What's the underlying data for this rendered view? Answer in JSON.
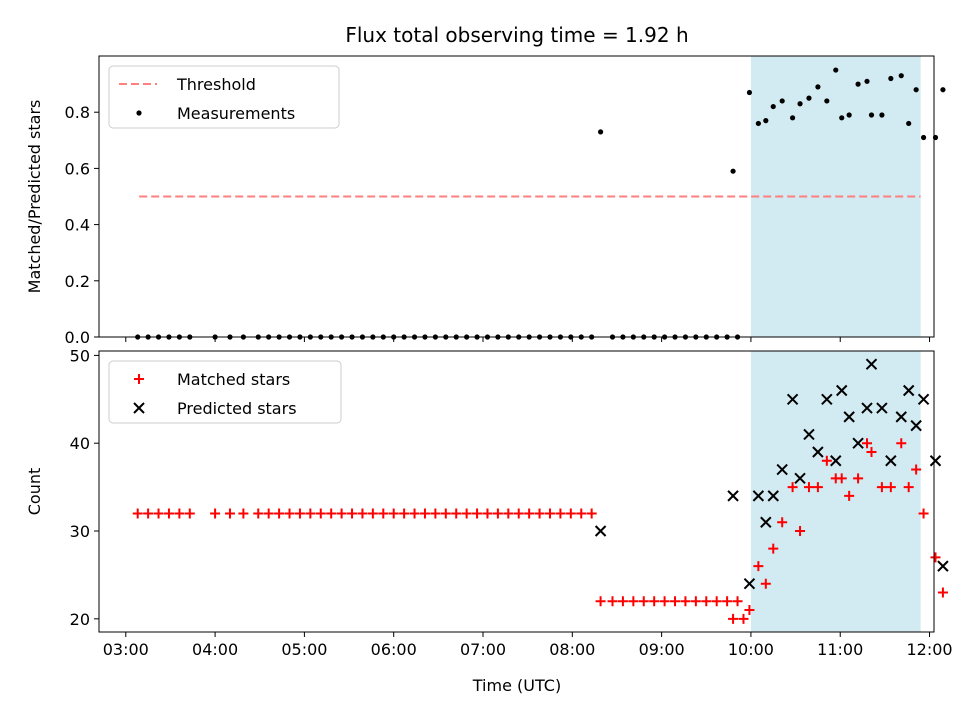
{
  "chart_data": {
    "title": "Flux total observing time = 1.92 h",
    "xlabel": "Time (UTC)",
    "x_ticks": [
      "03:00",
      "04:00",
      "05:00",
      "06:00",
      "07:00",
      "08:00",
      "09:00",
      "10:00",
      "11:00",
      "12:00"
    ],
    "x_range_hours": [
      2.7,
      12.05
    ],
    "highlight_span_hours": [
      10.0,
      11.9
    ],
    "colors": {
      "threshold": "#ff7f7f",
      "measurements": "#000000",
      "matched": "#ff0000",
      "predicted": "#000000",
      "highlight": "#add8e6"
    },
    "panels": [
      {
        "type": "scatter",
        "ylabel": "Matched/Predicted stars",
        "ylim": [
          0,
          1.0
        ],
        "y_ticks": [
          0.0,
          0.2,
          0.4,
          0.6,
          0.8
        ],
        "y_tick_labels": [
          "0.0",
          "0.2",
          "0.4",
          "0.6",
          "0.8"
        ],
        "legend_position": "top-left",
        "threshold": {
          "name": "Threshold",
          "value": 0.5,
          "x_range": [
            3.15,
            11.9
          ]
        },
        "series": [
          {
            "name": "Measurements",
            "marker": "dot",
            "points": [
              [
                "03:08",
                0
              ],
              [
                "03:15",
                0
              ],
              [
                "03:22",
                0
              ],
              [
                "03:29",
                0
              ],
              [
                "03:36",
                0
              ],
              [
                "03:43",
                0
              ],
              [
                "04:00",
                0
              ],
              [
                "04:10",
                0
              ],
              [
                "04:19",
                0
              ],
              [
                "04:29",
                0
              ],
              [
                "04:36",
                0
              ],
              [
                "04:43",
                0
              ],
              [
                "04:50",
                0
              ],
              [
                "04:57",
                0
              ],
              [
                "05:04",
                0
              ],
              [
                "05:11",
                0
              ],
              [
                "05:18",
                0
              ],
              [
                "05:25",
                0
              ],
              [
                "05:32",
                0
              ],
              [
                "05:39",
                0
              ],
              [
                "05:46",
                0
              ],
              [
                "05:53",
                0
              ],
              [
                "06:00",
                0
              ],
              [
                "06:07",
                0
              ],
              [
                "06:14",
                0
              ],
              [
                "06:21",
                0
              ],
              [
                "06:28",
                0
              ],
              [
                "06:35",
                0
              ],
              [
                "06:42",
                0
              ],
              [
                "06:49",
                0
              ],
              [
                "06:56",
                0
              ],
              [
                "07:03",
                0
              ],
              [
                "07:10",
                0
              ],
              [
                "07:17",
                0
              ],
              [
                "07:24",
                0
              ],
              [
                "07:31",
                0
              ],
              [
                "07:38",
                0
              ],
              [
                "07:45",
                0
              ],
              [
                "07:52",
                0
              ],
              [
                "07:59",
                0
              ],
              [
                "08:06",
                0
              ],
              [
                "08:13",
                0
              ],
              [
                "08:19",
                0.73
              ],
              [
                "08:27",
                0
              ],
              [
                "08:34",
                0
              ],
              [
                "08:41",
                0
              ],
              [
                "08:48",
                0
              ],
              [
                "08:55",
                0
              ],
              [
                "09:02",
                0
              ],
              [
                "09:09",
                0
              ],
              [
                "09:16",
                0
              ],
              [
                "09:23",
                0
              ],
              [
                "09:30",
                0
              ],
              [
                "09:37",
                0
              ],
              [
                "09:44",
                0
              ],
              [
                "09:51",
                0
              ],
              [
                "09:48",
                0.59
              ],
              [
                "09:59",
                0.87
              ],
              [
                "10:05",
                0.76
              ],
              [
                "10:10",
                0.77
              ],
              [
                "10:15",
                0.82
              ],
              [
                "10:21",
                0.84
              ],
              [
                "10:28",
                0.78
              ],
              [
                "10:33",
                0.83
              ],
              [
                "10:39",
                0.85
              ],
              [
                "10:45",
                0.89
              ],
              [
                "10:51",
                0.84
              ],
              [
                "10:57",
                0.95
              ],
              [
                "11:01",
                0.78
              ],
              [
                "11:06",
                0.79
              ],
              [
                "11:12",
                0.9
              ],
              [
                "11:18",
                0.91
              ],
              [
                "11:21",
                0.79
              ],
              [
                "11:28",
                0.79
              ],
              [
                "11:34",
                0.92
              ],
              [
                "11:41",
                0.93
              ],
              [
                "11:46",
                0.76
              ],
              [
                "11:51",
                0.88
              ],
              [
                "11:56",
                0.71
              ],
              [
                "12:04",
                0.71
              ],
              [
                "12:09",
                0.88
              ]
            ]
          }
        ]
      },
      {
        "type": "scatter",
        "ylabel": "Count",
        "ylim": [
          18.5,
          50.5
        ],
        "y_ticks": [
          20,
          30,
          40,
          50
        ],
        "y_tick_labels": [
          "20",
          "30",
          "40",
          "50"
        ],
        "legend_position": "top-left",
        "series": [
          {
            "name": "Matched stars",
            "marker": "plus",
            "points": [
              [
                "03:08",
                32
              ],
              [
                "03:15",
                32
              ],
              [
                "03:22",
                32
              ],
              [
                "03:29",
                32
              ],
              [
                "03:36",
                32
              ],
              [
                "03:43",
                32
              ],
              [
                "04:00",
                32
              ],
              [
                "04:10",
                32
              ],
              [
                "04:19",
                32
              ],
              [
                "04:29",
                32
              ],
              [
                "04:36",
                32
              ],
              [
                "04:43",
                32
              ],
              [
                "04:50",
                32
              ],
              [
                "04:57",
                32
              ],
              [
                "05:04",
                32
              ],
              [
                "05:11",
                32
              ],
              [
                "05:18",
                32
              ],
              [
                "05:25",
                32
              ],
              [
                "05:32",
                32
              ],
              [
                "05:39",
                32
              ],
              [
                "05:46",
                32
              ],
              [
                "05:53",
                32
              ],
              [
                "06:00",
                32
              ],
              [
                "06:07",
                32
              ],
              [
                "06:14",
                32
              ],
              [
                "06:21",
                32
              ],
              [
                "06:28",
                32
              ],
              [
                "06:35",
                32
              ],
              [
                "06:42",
                32
              ],
              [
                "06:49",
                32
              ],
              [
                "06:56",
                32
              ],
              [
                "07:03",
                32
              ],
              [
                "07:10",
                32
              ],
              [
                "07:17",
                32
              ],
              [
                "07:24",
                32
              ],
              [
                "07:31",
                32
              ],
              [
                "07:38",
                32
              ],
              [
                "07:45",
                32
              ],
              [
                "07:52",
                32
              ],
              [
                "07:59",
                32
              ],
              [
                "08:06",
                32
              ],
              [
                "08:13",
                32
              ],
              [
                "08:19",
                22
              ],
              [
                "08:27",
                22
              ],
              [
                "08:34",
                22
              ],
              [
                "08:41",
                22
              ],
              [
                "08:48",
                22
              ],
              [
                "08:55",
                22
              ],
              [
                "09:02",
                22
              ],
              [
                "09:09",
                22
              ],
              [
                "09:16",
                22
              ],
              [
                "09:23",
                22
              ],
              [
                "09:30",
                22
              ],
              [
                "09:37",
                22
              ],
              [
                "09:44",
                22
              ],
              [
                "09:51",
                22
              ],
              [
                "09:48",
                20
              ],
              [
                "09:55",
                20
              ],
              [
                "09:59",
                21
              ],
              [
                "10:05",
                26
              ],
              [
                "10:10",
                24
              ],
              [
                "10:15",
                28
              ],
              [
                "10:21",
                31
              ],
              [
                "10:28",
                35
              ],
              [
                "10:33",
                30
              ],
              [
                "10:39",
                35
              ],
              [
                "10:45",
                35
              ],
              [
                "10:51",
                38
              ],
              [
                "10:57",
                36
              ],
              [
                "11:01",
                36
              ],
              [
                "11:06",
                34
              ],
              [
                "11:12",
                36
              ],
              [
                "11:18",
                40
              ],
              [
                "11:21",
                39
              ],
              [
                "11:28",
                35
              ],
              [
                "11:34",
                35
              ],
              [
                "11:41",
                40
              ],
              [
                "11:46",
                35
              ],
              [
                "11:51",
                37
              ],
              [
                "11:56",
                32
              ],
              [
                "12:04",
                27
              ],
              [
                "12:09",
                23
              ]
            ]
          },
          {
            "name": "Predicted stars",
            "marker": "x",
            "points": [
              [
                "08:19",
                30
              ],
              [
                "09:48",
                34
              ],
              [
                "09:59",
                24
              ],
              [
                "10:05",
                34
              ],
              [
                "10:10",
                31
              ],
              [
                "10:15",
                34
              ],
              [
                "10:21",
                37
              ],
              [
                "10:28",
                45
              ],
              [
                "10:33",
                36
              ],
              [
                "10:39",
                41
              ],
              [
                "10:45",
                39
              ],
              [
                "10:51",
                45
              ],
              [
                "10:57",
                38
              ],
              [
                "11:01",
                46
              ],
              [
                "11:06",
                43
              ],
              [
                "11:12",
                40
              ],
              [
                "11:18",
                44
              ],
              [
                "11:21",
                49
              ],
              [
                "11:28",
                44
              ],
              [
                "11:34",
                38
              ],
              [
                "11:41",
                43
              ],
              [
                "11:46",
                46
              ],
              [
                "11:51",
                42
              ],
              [
                "11:56",
                45
              ],
              [
                "12:04",
                38
              ],
              [
                "12:09",
                26
              ]
            ]
          }
        ]
      }
    ]
  }
}
